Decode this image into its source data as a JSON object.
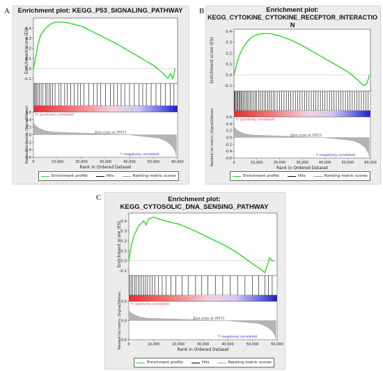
{
  "panels": [
    {
      "letter": "A",
      "title_lines": [
        "Enrichment plot: KEGG_P53_SIGNALING_PATHWAY"
      ],
      "es_ylabel": "Enrichment score (ES)",
      "rank_ylabel": "Ranked list metric (Signal2Noise)",
      "xlabel": "Rank in Ordered Dataset",
      "pos_label": "'h' (positively correlated)",
      "neg_label": "'l' (negatively correlated)",
      "zero_cross": "Zero cross at 39213",
      "legend": {
        "enrichment": "Enrichment profile",
        "hits": "Hits",
        "ranking": "Ranking metric scores"
      }
    },
    {
      "letter": "B",
      "title_lines": [
        "Enrichment plot:",
        "KEGG_CYTOKINE_CYTOKINE_RECEPTOR_INTERACTIO",
        "N"
      ],
      "es_ylabel": "Enrichment score (ES)",
      "rank_ylabel": "Ranked list metric (Signal2Noise)",
      "xlabel": "Rank in Ordered Dataset",
      "pos_label": "'h' (positively correlated)",
      "neg_label": "'l' (negatively correlated)",
      "zero_cross": "Zero cross at 39213",
      "legend": {
        "enrichment": "Enrichment profile",
        "hits": "Hits",
        "ranking": "Ranking metric scores"
      }
    },
    {
      "letter": "C",
      "title_lines": [
        "Enrichment plot:",
        "KEGG_CYTOSOLIC_DNA_SENSING_PATHWAY"
      ],
      "es_ylabel": "Enrichment score (ES)",
      "rank_ylabel": "Ranked list metric (Signal2Noise)",
      "xlabel": "Rank in Ordered Dataset",
      "pos_label": "'h' (positively correlated)",
      "neg_label": "'l' (negatively correlated)",
      "zero_cross": "Zero cross at 39213",
      "legend": {
        "enrichment": "Enrichment profile",
        "hits": "Hits",
        "ranking": "Ranking metric scores"
      }
    }
  ],
  "colors": {
    "enrichment": "#22dd22",
    "hits": "#000000",
    "ranking": "#999999",
    "positive": "#e03030",
    "negative": "#2020c0"
  },
  "chart_data": [
    {
      "type": "line",
      "title": "Enrichment plot: KEGG_P53_SIGNALING_PATHWAY",
      "xlabel": "Rank in Ordered Dataset",
      "ylabel": "Enrichment score (ES)",
      "xlim": [
        0,
        60000
      ],
      "ylim": [
        -0.15,
        0.5
      ],
      "xticks": [
        0,
        10000,
        20000,
        30000,
        40000,
        50000,
        60000
      ],
      "es_ticks": [
        0.4,
        0.3,
        0.2,
        0.1,
        0.0,
        -0.1
      ],
      "rank_ticks": [
        0.6,
        0.4,
        0.2,
        0.0,
        -0.2,
        -0.4,
        -0.6
      ],
      "series": [
        {
          "name": "Enrichment profile",
          "x": [
            0,
            1000,
            2000,
            3000,
            5000,
            7000,
            9000,
            12000,
            15000,
            18000,
            20000,
            25000,
            30000,
            35000,
            40000,
            45000,
            50000,
            54000,
            56000,
            57000,
            58000,
            59000
          ],
          "y": [
            0.0,
            0.12,
            0.25,
            0.33,
            0.4,
            0.44,
            0.46,
            0.46,
            0.45,
            0.43,
            0.42,
            0.36,
            0.3,
            0.24,
            0.17,
            0.1,
            0.03,
            -0.05,
            -0.1,
            -0.05,
            -0.1,
            0.0
          ]
        }
      ],
      "hits": [
        300,
        800,
        1200,
        1800,
        2500,
        3200,
        4000,
        5000,
        5600,
        6500,
        7200,
        8000,
        9000,
        10500,
        11500,
        13000,
        14000,
        15500,
        17000,
        18500,
        19500,
        21000,
        23000,
        25000,
        26500,
        28000,
        30000,
        32000,
        33500,
        35000,
        36500,
        38000,
        40000,
        42000,
        44000,
        45500,
        47000,
        49000,
        51000,
        53000,
        55000,
        57000,
        58500
      ]
    },
    {
      "type": "line",
      "title": "Enrichment plot: KEGG_CYTOKINE_CYTOKINE_RECEPTOR_INTERACTION",
      "xlabel": "Rank in Ordered Dataset",
      "ylabel": "Enrichment score (ES)",
      "xlim": [
        0,
        60000
      ],
      "ylim": [
        -0.15,
        0.42
      ],
      "xticks": [
        0,
        10000,
        20000,
        30000,
        40000,
        50000,
        60000
      ],
      "es_ticks": [
        0.4,
        0.3,
        0.2,
        0.1,
        0.0,
        -0.1
      ],
      "rank_ticks": [
        0.6,
        0.4,
        0.2,
        0.0,
        -0.2,
        -0.4,
        -0.6
      ],
      "series": [
        {
          "name": "Enrichment profile",
          "x": [
            0,
            1000,
            2000,
            4000,
            6000,
            8000,
            10000,
            13000,
            16000,
            20000,
            25000,
            30000,
            35000,
            40000,
            45000,
            50000,
            53000,
            55000,
            57000,
            58500,
            59500
          ],
          "y": [
            0.0,
            0.08,
            0.16,
            0.25,
            0.31,
            0.35,
            0.37,
            0.38,
            0.38,
            0.36,
            0.32,
            0.27,
            0.21,
            0.15,
            0.09,
            0.03,
            -0.02,
            -0.06,
            -0.1,
            -0.08,
            0.0
          ]
        }
      ],
      "hits": [
        200,
        500,
        900,
        1300,
        1700,
        2200,
        2600,
        3100,
        3600,
        4100,
        4700,
        5300,
        5900,
        6500,
        7200,
        7900,
        8600,
        9300,
        10000,
        10800,
        11600,
        12400,
        13200,
        14000,
        14800,
        15600,
        16400,
        17200,
        18000,
        19000,
        20000,
        21000,
        22000,
        23000,
        24000,
        25000,
        26000,
        27000,
        28000,
        29000,
        30000,
        31000,
        32000,
        33000,
        34000,
        35000,
        36000,
        37000,
        38000,
        39000,
        40000,
        41000,
        42000,
        43000,
        44000,
        45000,
        46000,
        47000,
        48000,
        49000,
        50000,
        51000,
        52000,
        53000,
        54000,
        55000,
        56000,
        57000,
        58000,
        59000
      ]
    },
    {
      "type": "line",
      "title": "Enrichment plot: KEGG_CYTOSOLIC_DNA_SENSING_PATHWAY",
      "xlabel": "Rank in Ordered Dataset",
      "ylabel": "Enrichment score (ES)",
      "xlim": [
        0,
        60000
      ],
      "ylim": [
        -0.15,
        0.48
      ],
      "xticks": [
        0,
        10000,
        20000,
        30000,
        40000,
        50000,
        60000
      ],
      "es_ticks": [
        0.4,
        0.3,
        0.2,
        0.1,
        0.0,
        -0.1
      ],
      "rank_ticks": [
        0.5,
        0.0,
        -0.5
      ],
      "series": [
        {
          "name": "Enrichment profile",
          "x": [
            0,
            1000,
            2000,
            3000,
            4000,
            6000,
            7000,
            8000,
            10000,
            12000,
            15000,
            18000,
            20000,
            25000,
            30000,
            35000,
            40000,
            45000,
            50000,
            53000,
            55000,
            56000,
            57000,
            58000,
            59000
          ],
          "y": [
            0.0,
            0.15,
            0.25,
            0.3,
            0.35,
            0.4,
            0.36,
            0.42,
            0.44,
            0.42,
            0.4,
            0.38,
            0.37,
            0.32,
            0.26,
            0.2,
            0.14,
            0.06,
            -0.03,
            -0.08,
            -0.12,
            -0.05,
            0.03,
            0.0,
            0.0
          ]
        }
      ],
      "hits": [
        300,
        900,
        1600,
        2300,
        3000,
        3800,
        4500,
        5300,
        6000,
        6800,
        7600,
        8500,
        9500,
        10500,
        12000,
        13500,
        15000,
        17000,
        19000,
        21500,
        24000,
        27000,
        29500,
        32000,
        35000,
        38000,
        41000,
        44000,
        47000,
        50000,
        52500,
        55000,
        56500,
        58000
      ]
    }
  ]
}
